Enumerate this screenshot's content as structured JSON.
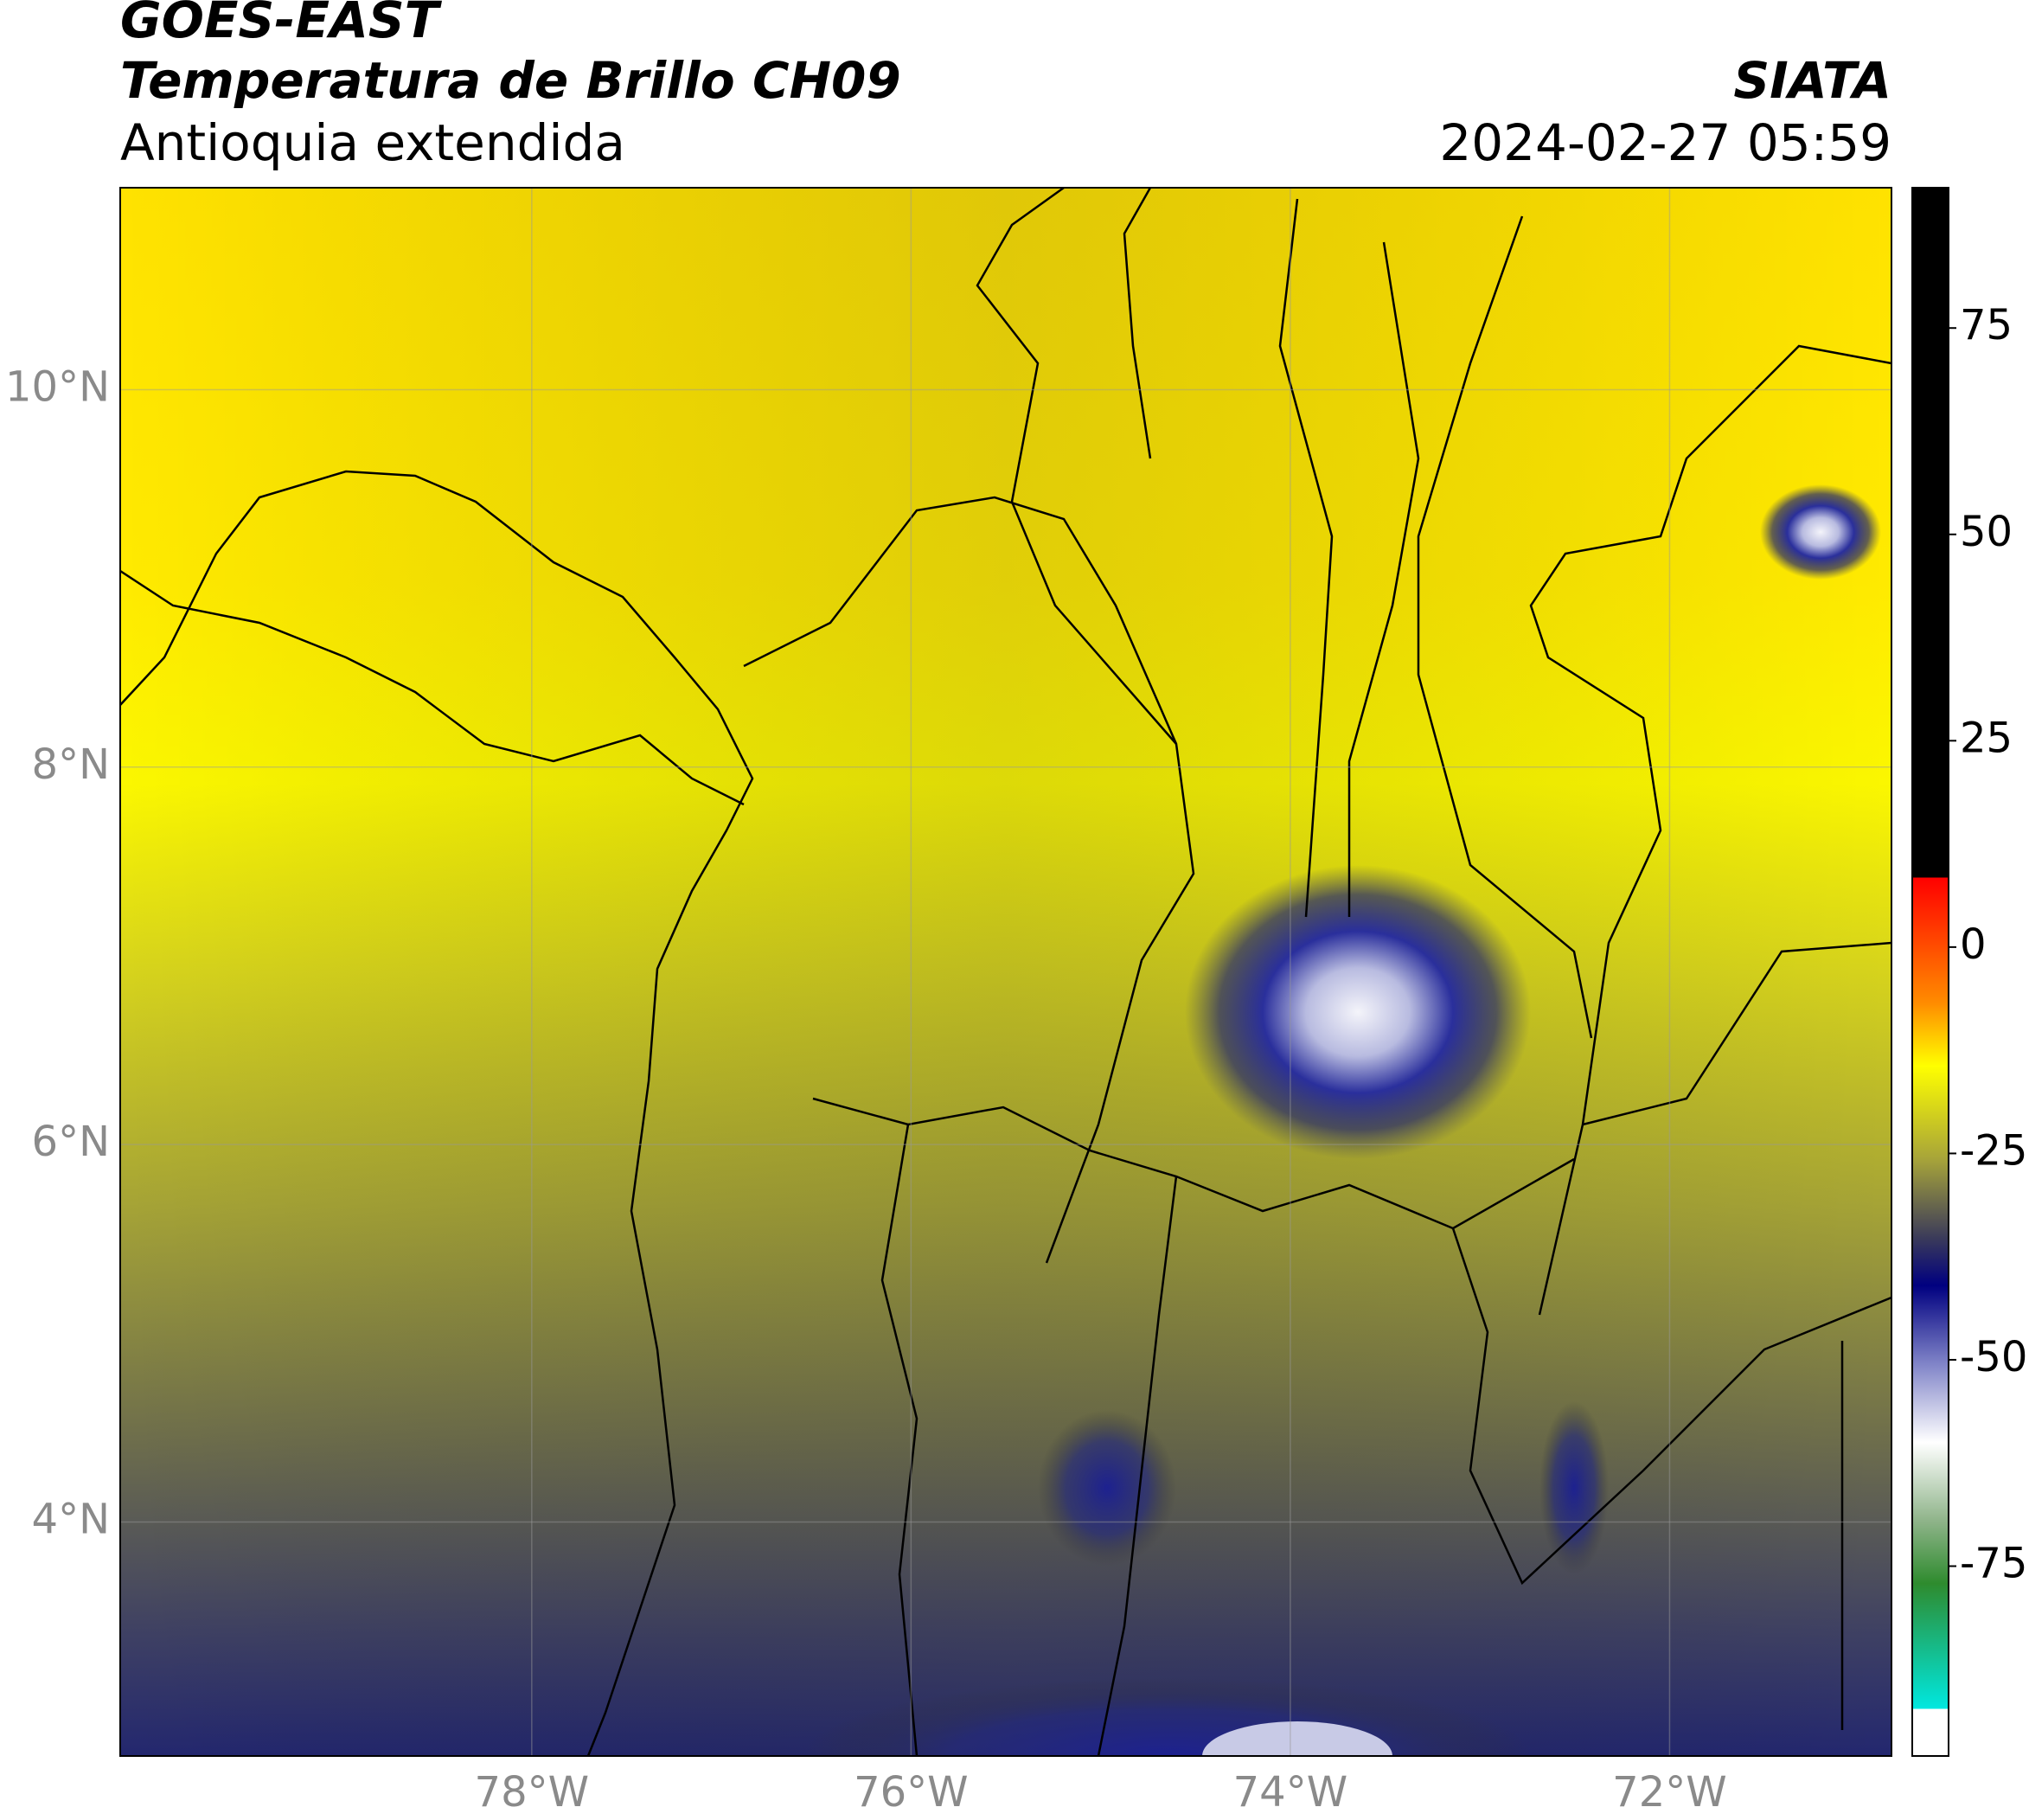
{
  "header": {
    "satellite": "GOES-EAST",
    "product": "Temperatura de Brillo CH09",
    "region": "Antioquia extendida",
    "source": "SIATA",
    "datetime": "2024-02-27 05:59"
  },
  "map": {
    "xlim": [
      -80.17,
      -70.83
    ],
    "ylim": [
      2.76,
      11.07
    ],
    "xticks": [
      {
        "value": -78,
        "label": "78°W"
      },
      {
        "value": -76,
        "label": "76°W"
      },
      {
        "value": -74,
        "label": "74°W"
      },
      {
        "value": -72,
        "label": "72°W"
      }
    ],
    "yticks": [
      {
        "value": 10,
        "label": "10°N"
      },
      {
        "value": 8,
        "label": "8°N"
      },
      {
        "value": 6,
        "label": "6°N"
      },
      {
        "value": 4,
        "label": "4°N"
      }
    ],
    "grid": true
  },
  "colorbar": {
    "lim": [
      -98,
      92
    ],
    "ticks": [
      75,
      50,
      25,
      0,
      -25,
      -50,
      -75
    ]
  }
}
